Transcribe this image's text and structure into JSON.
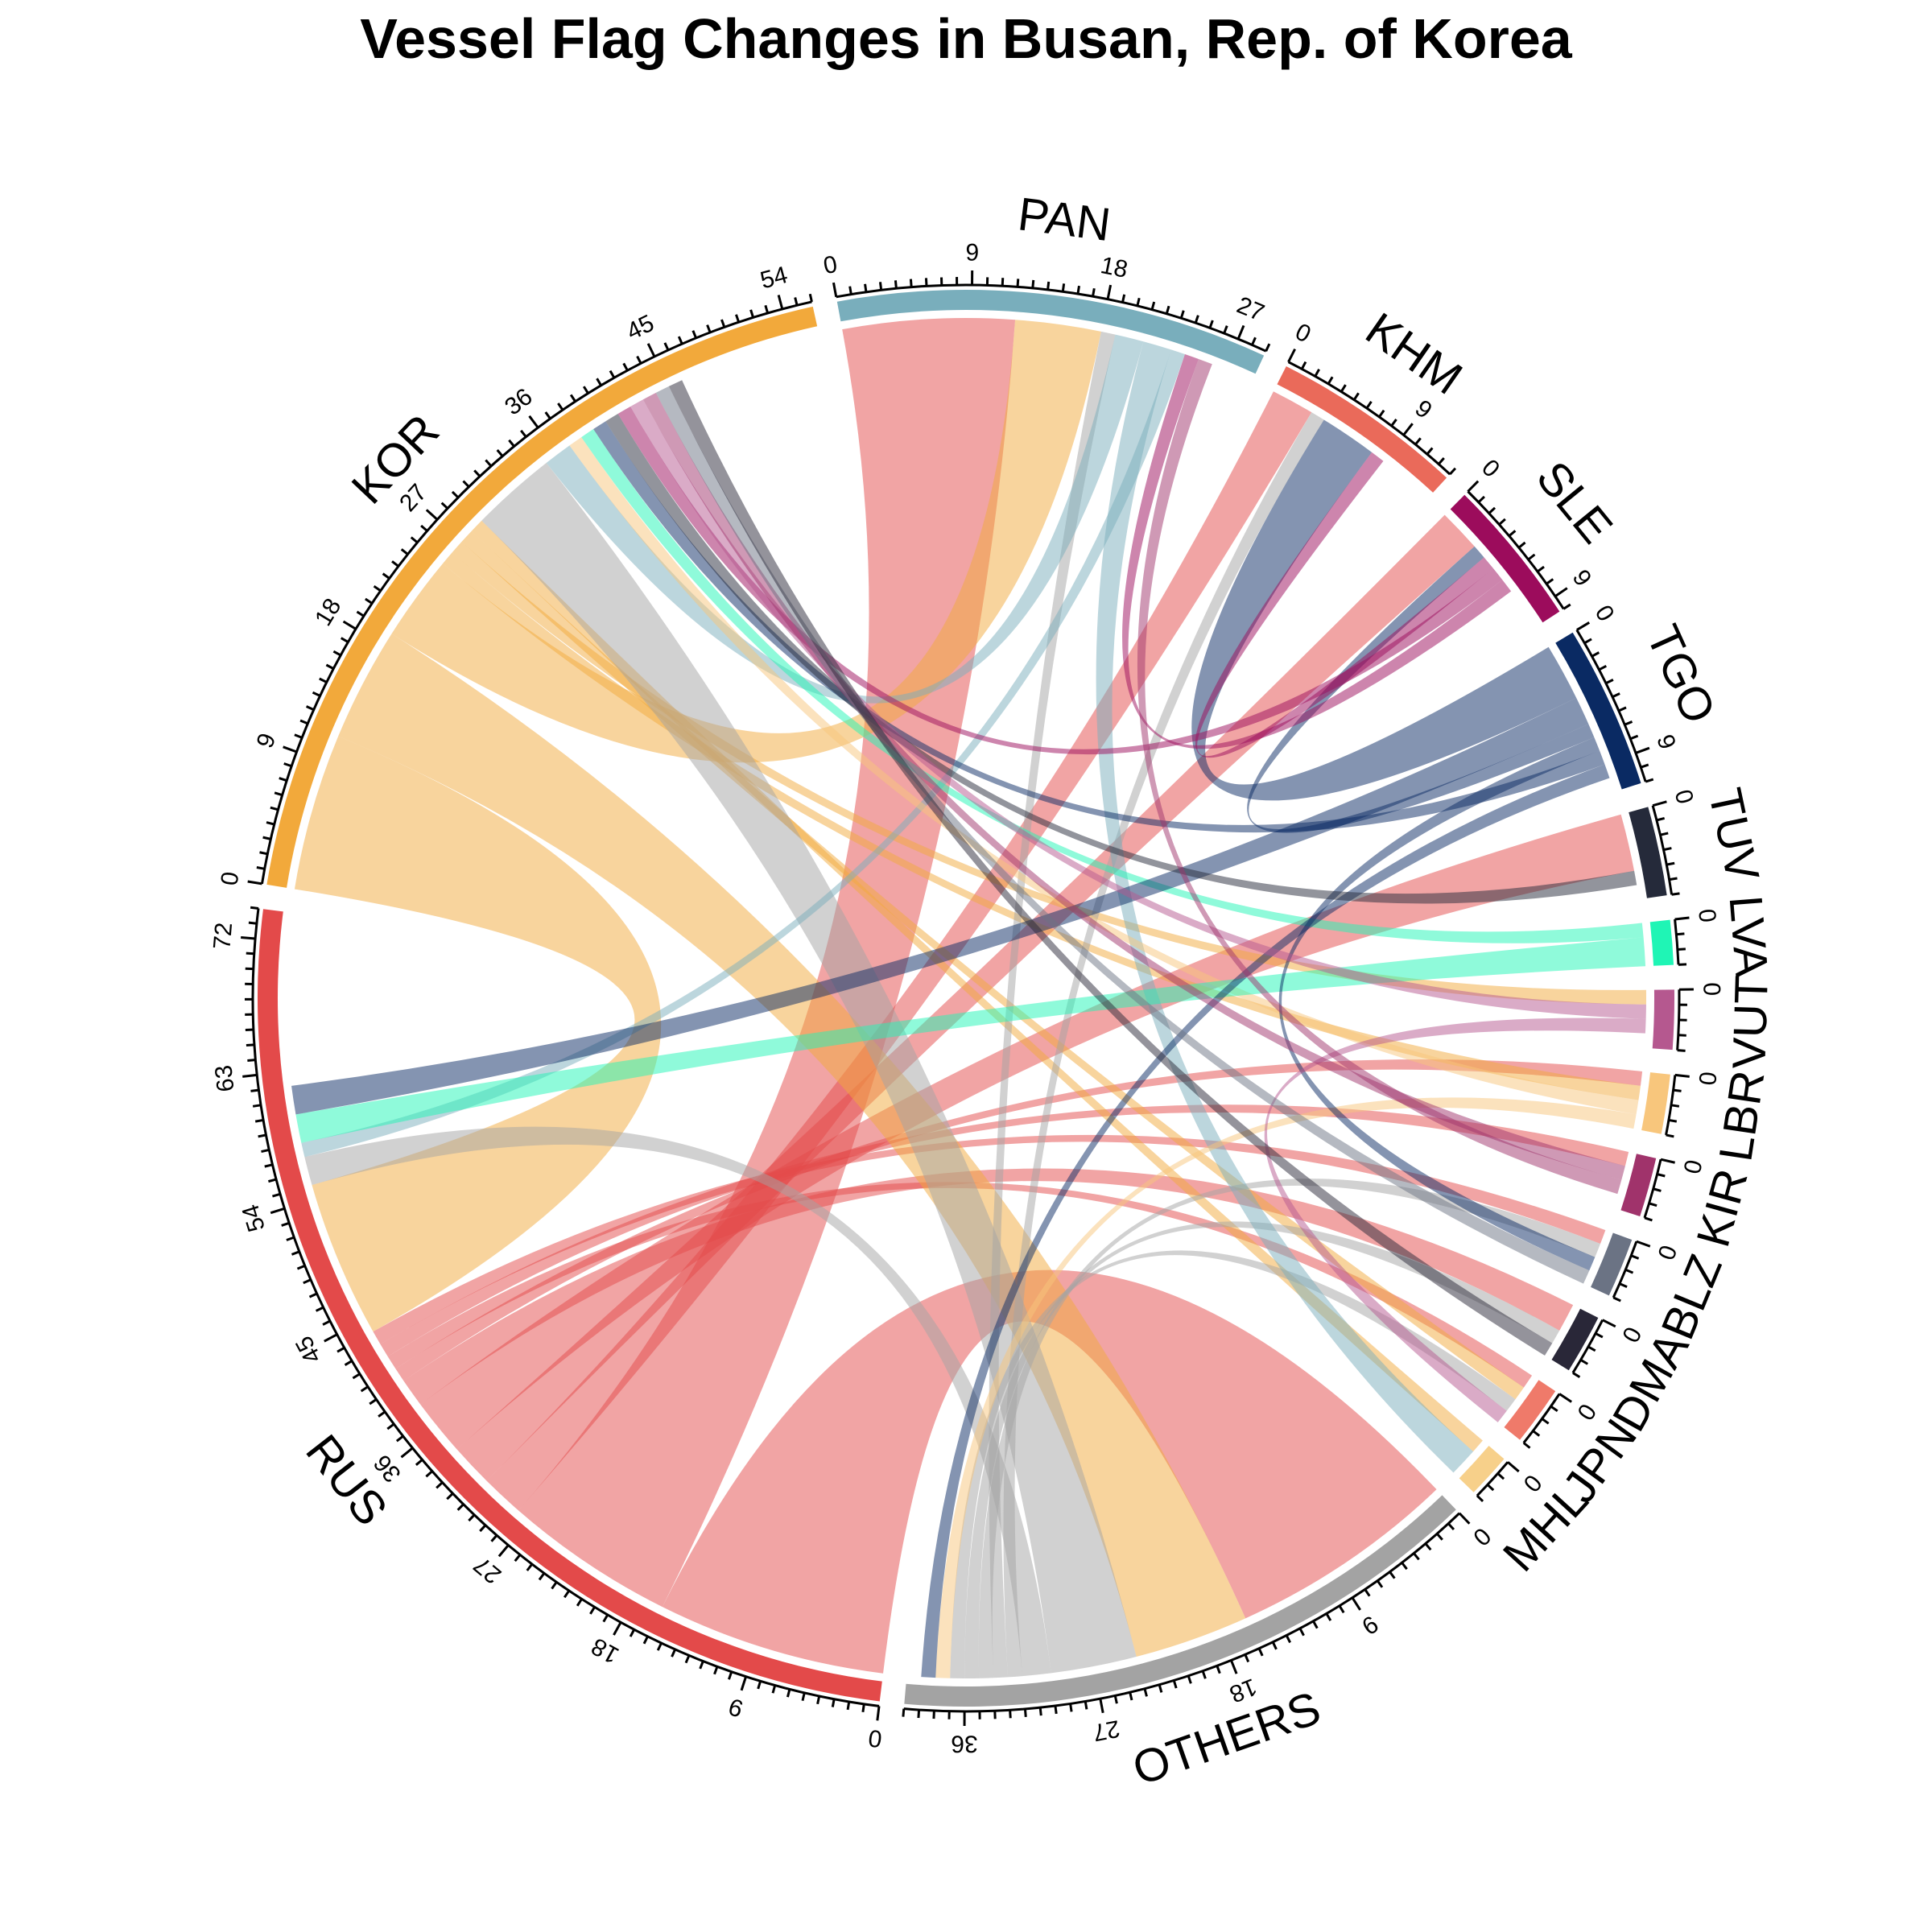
{
  "chart_data": {
    "type": "chord",
    "title": "Vessel Flag Changes in Busan, Rep. of Korea",
    "tick_step": 9,
    "sectors": [
      {
        "name": "RUS",
        "total": 74,
        "color": "#e34a4a"
      },
      {
        "name": "KOR",
        "total": 56,
        "color": "#f2a93b"
      },
      {
        "name": "PAN",
        "total": 29,
        "color": "#79aebc"
      },
      {
        "name": "KHM",
        "total": 13,
        "color": "#ea6a5a"
      },
      {
        "name": "SLE",
        "total": 10,
        "color": "#9c0c5c"
      },
      {
        "name": "TGO",
        "total": 11,
        "color": "#0a2a63"
      },
      {
        "name": "TUV",
        "total": 6,
        "color": "#252a3a"
      },
      {
        "name": "LVA",
        "total": 3,
        "color": "#1ff5b5"
      },
      {
        "name": "VUT",
        "total": 4,
        "color": "#b5588f"
      },
      {
        "name": "LBR",
        "total": 4,
        "color": "#f8c67c"
      },
      {
        "name": "KIR",
        "total": 4,
        "color": "#a0336b"
      },
      {
        "name": "BLZ",
        "total": 4,
        "color": "#6b7384"
      },
      {
        "name": "DMA",
        "total": 4,
        "color": "#292738"
      },
      {
        "name": "JPN",
        "total": 4,
        "color": "#ef7a6a"
      },
      {
        "name": "MHL",
        "total": 3,
        "color": "#f7d08a"
      },
      {
        "name": "OTHERS",
        "total": 40,
        "color": "#a3a3a3"
      }
    ],
    "links": [
      {
        "from": "RUS",
        "to": "OTHERS",
        "value": 16
      },
      {
        "from": "RUS",
        "to": "PAN",
        "value": 12
      },
      {
        "from": "RUS",
        "to": "KHM",
        "value": 3
      },
      {
        "from": "RUS",
        "to": "SLE",
        "value": 3
      },
      {
        "from": "RUS",
        "to": "TUV",
        "value": 4
      },
      {
        "from": "RUS",
        "to": "DMA",
        "value": 2
      },
      {
        "from": "RUS",
        "to": "LBR",
        "value": 1
      },
      {
        "from": "RUS",
        "to": "JPN",
        "value": 1
      },
      {
        "from": "RUS",
        "to": "KIR",
        "value": 1
      },
      {
        "from": "RUS",
        "to": "BLZ",
        "value": 1
      },
      {
        "from": "KOR",
        "to": "RUS",
        "value": 11
      },
      {
        "from": "KOR",
        "to": "OTHERS",
        "value": 8
      },
      {
        "from": "KOR",
        "to": "PAN",
        "value": 6
      },
      {
        "from": "KOR",
        "to": "LBR",
        "value": 1
      },
      {
        "from": "KOR",
        "to": "VUT",
        "value": 1
      },
      {
        "from": "KOR",
        "to": "JPN",
        "value": 1
      },
      {
        "from": "KOR",
        "to": "MHL",
        "value": 1
      },
      {
        "from": "OTHERS",
        "to": "KOR",
        "value": 6
      },
      {
        "from": "OTHERS",
        "to": "RUS",
        "value": 2
      },
      {
        "from": "OTHERS",
        "to": "KHM",
        "value": 1
      },
      {
        "from": "OTHERS",
        "to": "PAN",
        "value": 1
      },
      {
        "from": "OTHERS",
        "to": "BLZ",
        "value": 1
      },
      {
        "from": "OTHERS",
        "to": "DMA",
        "value": 1
      },
      {
        "from": "OTHERS",
        "to": "JPN",
        "value": 1
      },
      {
        "from": "PAN",
        "to": "KOR",
        "value": 2
      },
      {
        "from": "PAN",
        "to": "MHL",
        "value": 2
      },
      {
        "from": "PAN",
        "to": "RUS",
        "value": 1
      },
      {
        "from": "LBR",
        "to": "KOR",
        "value": 1
      },
      {
        "from": "LBR",
        "to": "OTHERS",
        "value": 1
      },
      {
        "from": "LVA",
        "to": "KOR",
        "value": 1
      },
      {
        "from": "LVA",
        "to": "RUS",
        "value": 2
      },
      {
        "from": "TGO",
        "to": "KHM",
        "value": 4
      },
      {
        "from": "TGO",
        "to": "RUS",
        "value": 2
      },
      {
        "from": "TGO",
        "to": "SLE",
        "value": 1
      },
      {
        "from": "TGO",
        "to": "BLZ",
        "value": 1
      },
      {
        "from": "TGO",
        "to": "KOR",
        "value": 1
      },
      {
        "from": "TGO",
        "to": "OTHERS",
        "value": 1
      },
      {
        "from": "TUV",
        "to": "KOR",
        "value": 1
      },
      {
        "from": "SLE",
        "to": "KHM",
        "value": 1
      },
      {
        "from": "SLE",
        "to": "KOR",
        "value": 1
      },
      {
        "from": "SLE",
        "to": "PAN",
        "value": 1
      },
      {
        "from": "VUT",
        "to": "KOR",
        "value": 1
      },
      {
        "from": "VUT",
        "to": "JPN",
        "value": 1
      },
      {
        "from": "KIR",
        "to": "KOR",
        "value": 1
      },
      {
        "from": "KIR",
        "to": "PAN",
        "value": 1
      },
      {
        "from": "BLZ",
        "to": "KOR",
        "value": 1
      },
      {
        "from": "DMA",
        "to": "KOR",
        "value": 1
      }
    ]
  }
}
